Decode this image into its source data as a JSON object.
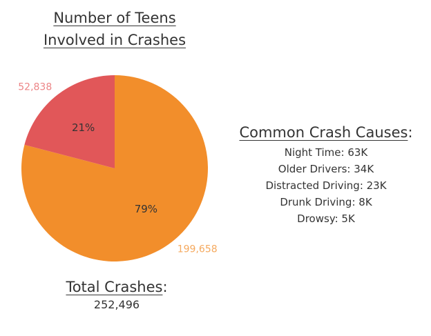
{
  "chart_data": {
    "type": "pie",
    "title_lines": [
      "Number of Teens",
      "Involved in Crashes"
    ],
    "slices": [
      {
        "value": 199658,
        "value_label": "199,658",
        "percent_label": "79%",
        "color": "#F28E2B",
        "value_label_color": "#F5A95E"
      },
      {
        "value": 52838,
        "value_label": "52,838",
        "percent_label": "21%",
        "color": "#E15759",
        "value_label_color": "#EC8486"
      }
    ],
    "legend": "none"
  },
  "causes": {
    "heading": "Common Crash Causes",
    "colon": ":",
    "items": [
      "Night Time: 63K",
      "Older Drivers: 34K",
      "Distracted Driving: 23K",
      "Drunk Driving: 8K",
      "Drowsy: 5K"
    ]
  },
  "total": {
    "heading": "Total Crashes",
    "colon": ":",
    "value": "252,496"
  }
}
